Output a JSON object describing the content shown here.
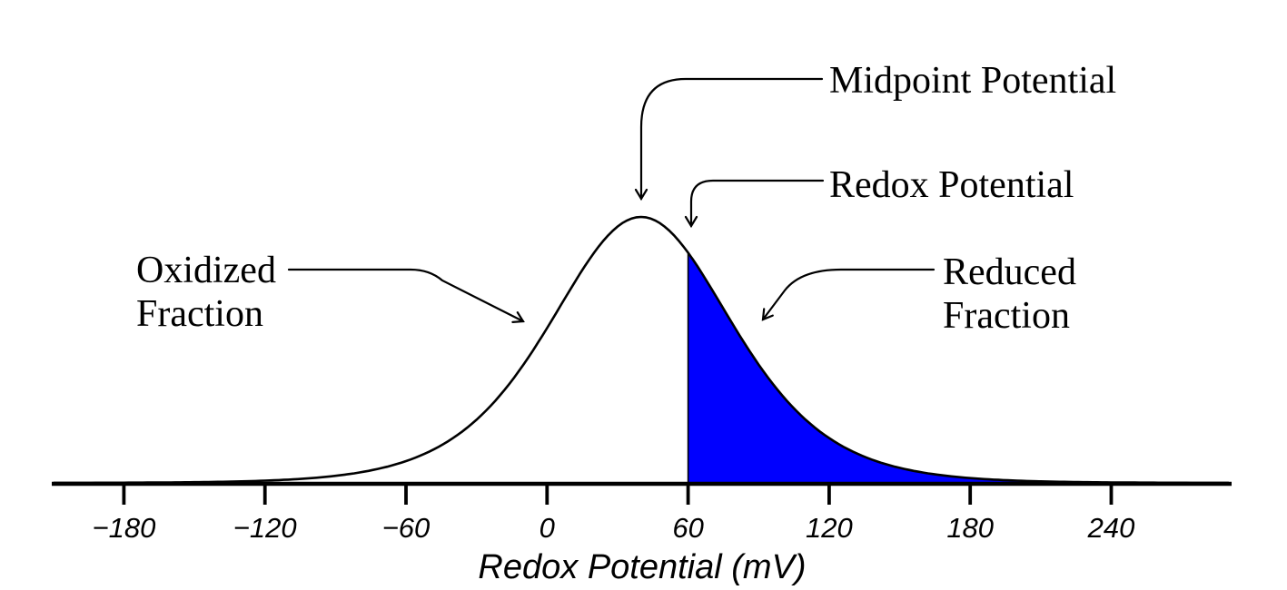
{
  "figure": {
    "background": "#ffffff",
    "labels": {
      "midpoint": "Midpoint Potential",
      "redox": "Redox Potential",
      "oxidized_line1": "Oxidized",
      "oxidized_line2": "Fraction",
      "reduced_line1": "Reduced",
      "reduced_line2": "Fraction"
    }
  },
  "chart_data": {
    "type": "area",
    "title": "",
    "xlabel": "Redox Potential (mV)",
    "ylabel": "",
    "xlim": [
      -210,
      291
    ],
    "x_ticks": [
      -180,
      -120,
      -60,
      0,
      60,
      120,
      180,
      240
    ],
    "x_tick_labels": [
      "−180",
      "−120",
      "−60",
      "0",
      "60",
      "120",
      "180",
      "240"
    ],
    "grid": false,
    "legend": false,
    "curve": {
      "shape": "sech2 (logistic-derivative distribution)",
      "center_mV": 40,
      "width_mV": 52,
      "peak_rel_height": 1.0,
      "samples_rel_height": [
        {
          "mV": -180,
          "rel": 0.001
        },
        {
          "mV": -120,
          "rel": 0.008
        },
        {
          "mV": -60,
          "rel": 0.082
        },
        {
          "mV": 0,
          "rel": 0.58
        },
        {
          "mV": 40,
          "rel": 1.0
        },
        {
          "mV": 60,
          "rel": 0.87
        },
        {
          "mV": 120,
          "rel": 0.17
        },
        {
          "mV": 180,
          "rel": 0.018
        },
        {
          "mV": 240,
          "rel": 0.002
        }
      ]
    },
    "shaded_region": {
      "from_mV": 60,
      "to_mV": 291,
      "color": "#0000FF",
      "label": "Reduced Fraction"
    },
    "unshaded_region_label": "Oxidized Fraction",
    "annotations": [
      {
        "text": "Midpoint Potential",
        "points_to_mV": 40,
        "points_to": "peak of curve"
      },
      {
        "text": "Redox Potential",
        "points_to_mV": 60,
        "points_to": "boundary of shaded area"
      },
      {
        "text": "Oxidized Fraction",
        "points_to": "left flank of curve"
      },
      {
        "text": "Reduced Fraction",
        "points_to": "shaded right flank of curve"
      }
    ],
    "colors": {
      "curve": "#000000",
      "fill": "#0000FF",
      "axis": "#000000",
      "text": "#000000"
    }
  }
}
